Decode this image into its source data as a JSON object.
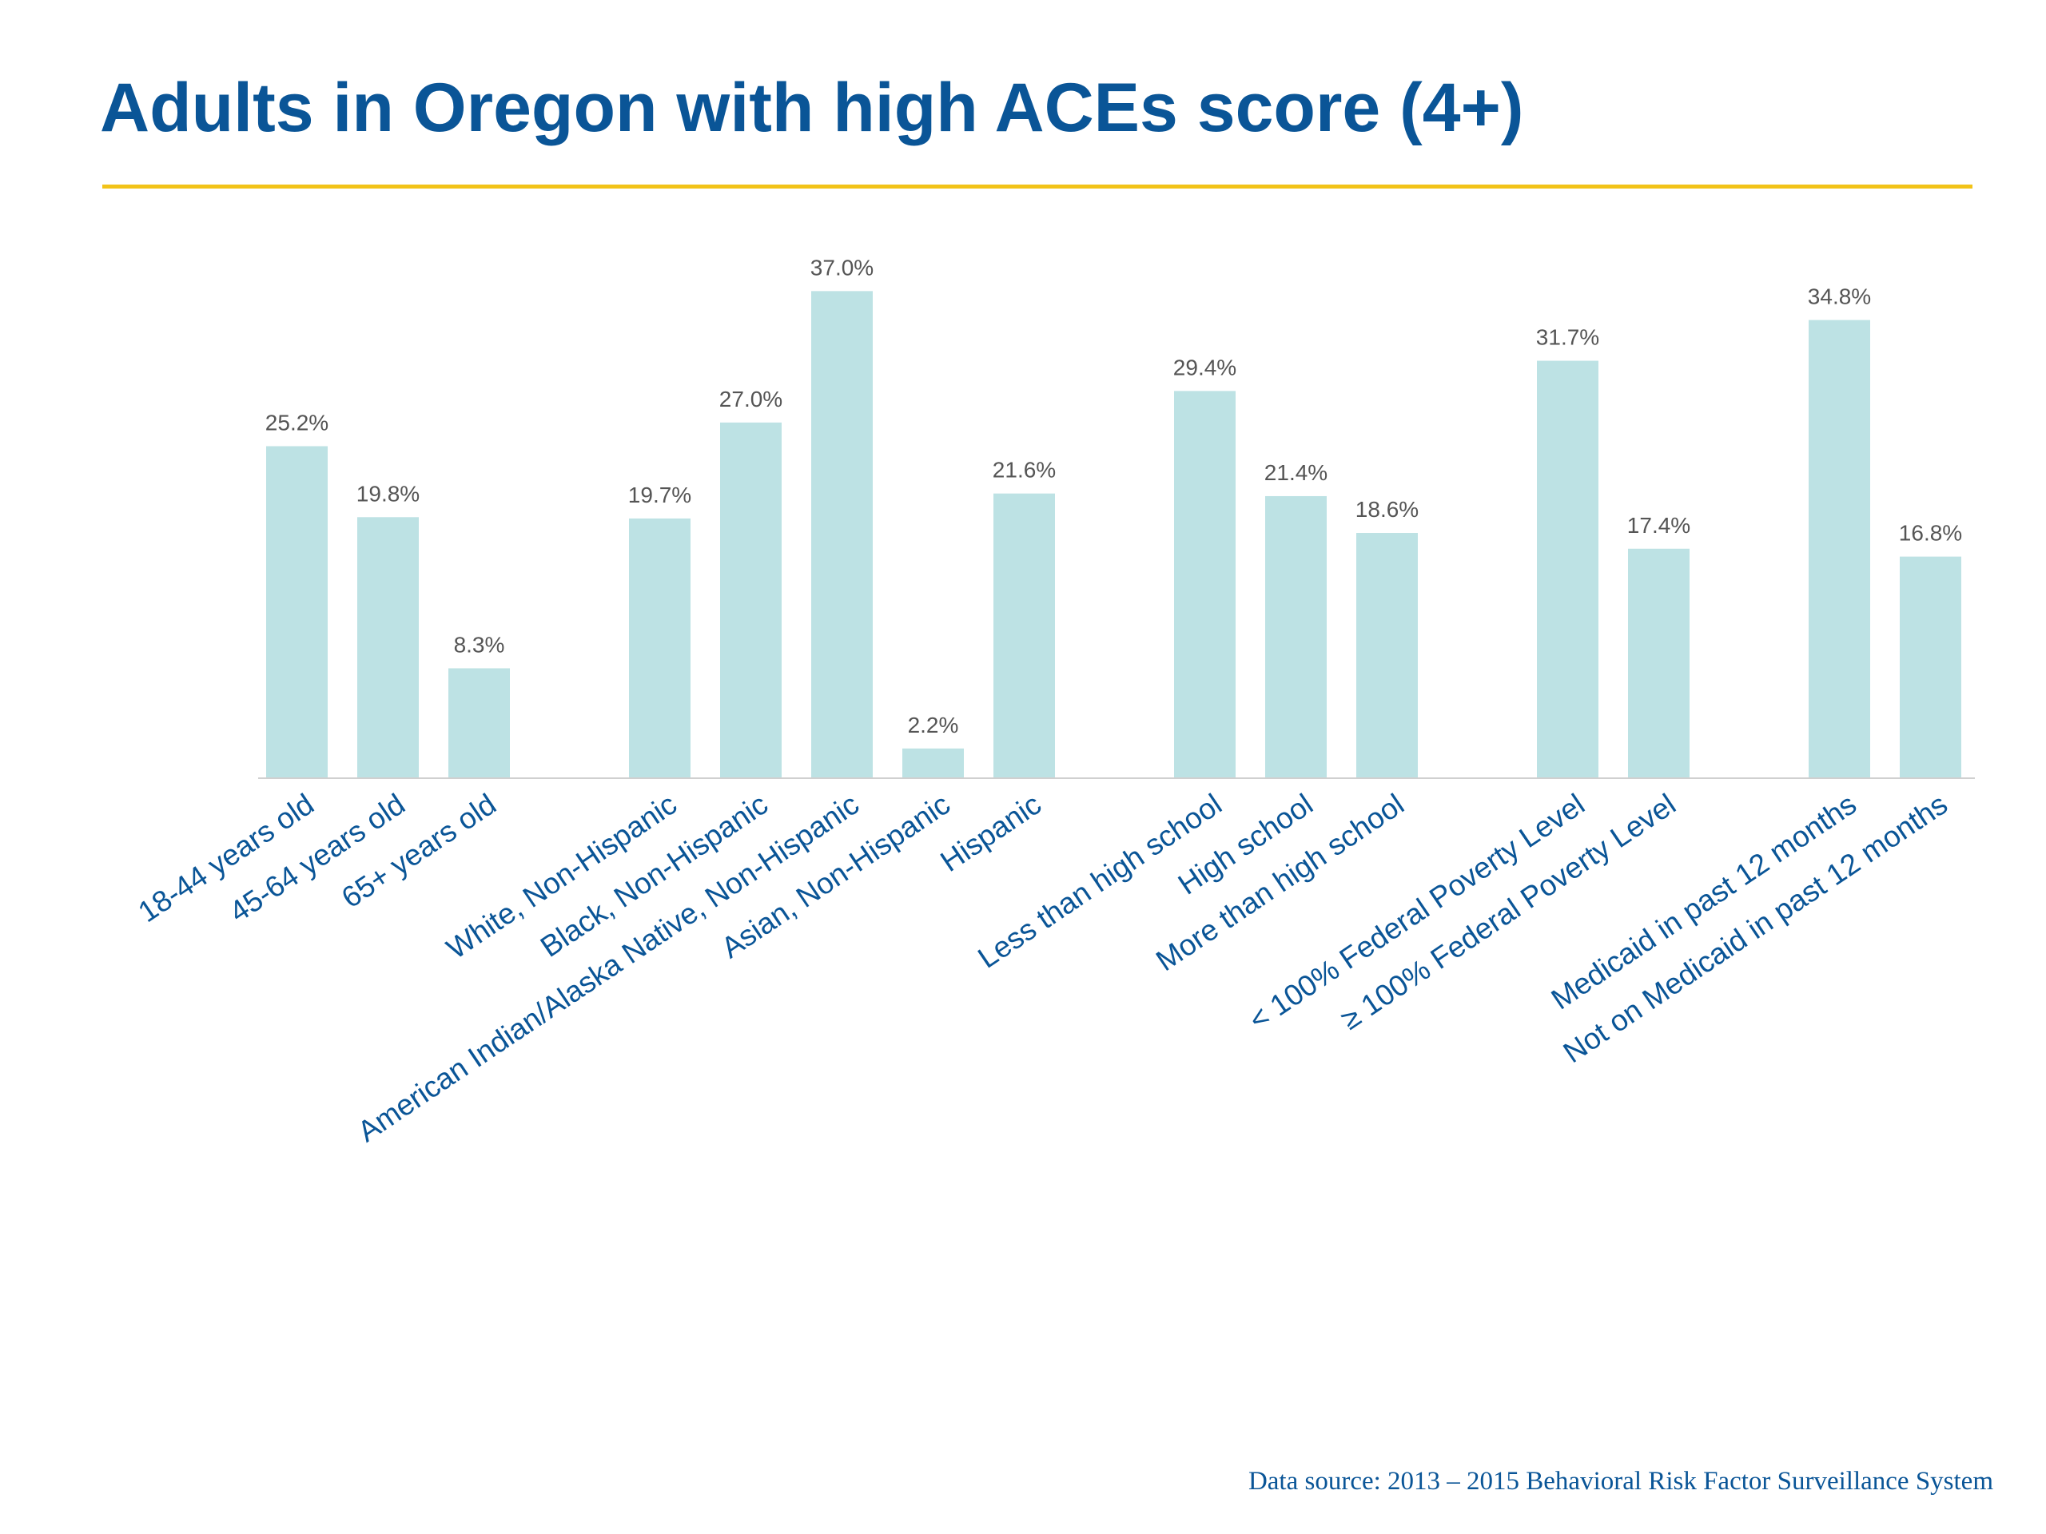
{
  "colors": {
    "title": "#0a5597",
    "rule": "#f2c318",
    "bar": "#bde2e4",
    "axis": "#d0d0d0",
    "value_label": "#555555",
    "category_label": "#0a5597",
    "source": "#0a5597"
  },
  "title": "Adults in Oregon with high ACEs score (4+)",
  "source": "Data source: 2013 – 2015 Behavioral Risk Factor Surveillance System",
  "chart_data": {
    "type": "bar",
    "title": "Adults in Oregon with high ACEs score (4+)",
    "xlabel": "",
    "ylabel": "",
    "ylim": [
      0,
      40
    ],
    "grid": false,
    "legend": "none",
    "groups": [
      {
        "categories": [
          "18-44 years old",
          "45-64 years old",
          "65+ years old"
        ],
        "values": [
          25.2,
          19.8,
          8.3
        ],
        "labels": [
          "25.2%",
          "19.8%",
          "8.3%"
        ]
      },
      {
        "categories": [
          "White, Non-Hispanic",
          "Black, Non-Hispanic",
          "American Indian/Alaska Native, Non-Hispanic",
          "Asian, Non-Hispanic",
          "Hispanic"
        ],
        "values": [
          19.7,
          27.0,
          37.0,
          2.2,
          21.6
        ],
        "labels": [
          "19.7%",
          "27.0%",
          "37.0%",
          "2.2%",
          "21.6%"
        ]
      },
      {
        "categories": [
          "Less than high school",
          "High school",
          "More than high school"
        ],
        "values": [
          29.4,
          21.4,
          18.6
        ],
        "labels": [
          "29.4%",
          "21.4%",
          "18.6%"
        ]
      },
      {
        "categories": [
          "< 100% Federal Poverty Level",
          "≥ 100% Federal Poverty Level"
        ],
        "values": [
          31.7,
          17.4
        ],
        "labels": [
          "31.7%",
          "17.4%"
        ]
      },
      {
        "categories": [
          "Medicaid in past 12 months",
          "Not on Medicaid in past 12 months"
        ],
        "values": [
          34.8,
          16.8
        ],
        "labels": [
          "34.8%",
          "16.8%"
        ]
      }
    ]
  }
}
